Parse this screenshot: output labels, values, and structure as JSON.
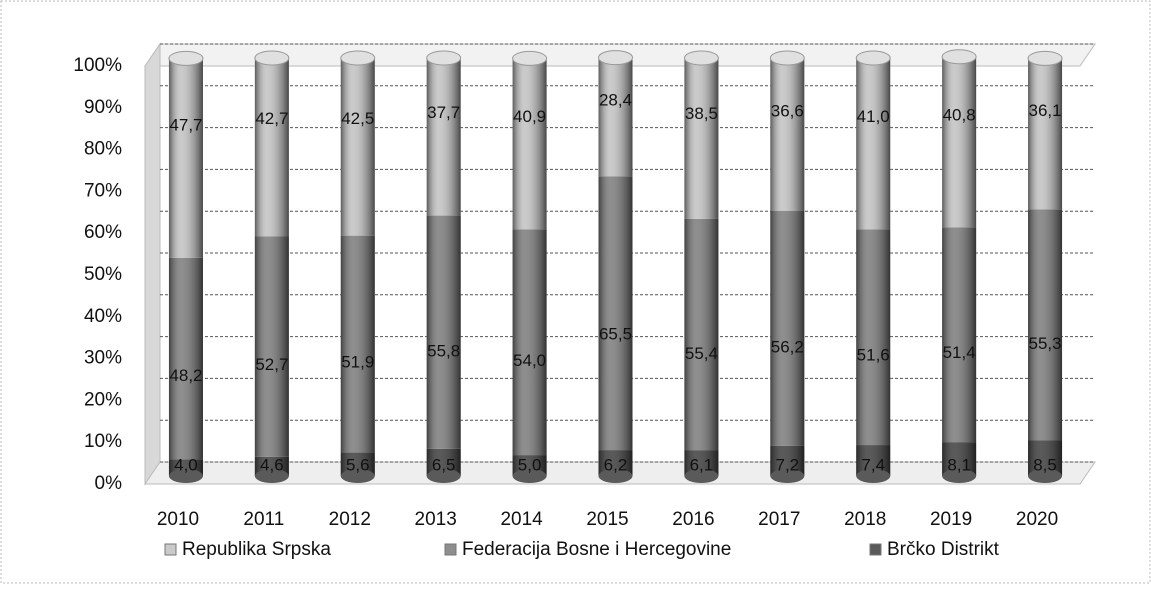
{
  "chart_data": {
    "type": "bar",
    "stacked": true,
    "categories": [
      "2010",
      "2011",
      "2012",
      "2013",
      "2014",
      "2015",
      "2016",
      "2017",
      "2018",
      "2019",
      "2020"
    ],
    "series": [
      {
        "name": "Brčko Distrikt",
        "color": "#5a5a5a",
        "values": [
          4.0,
          4.6,
          5.6,
          6.5,
          5.0,
          6.2,
          6.1,
          7.2,
          7.4,
          8.1,
          8.5
        ],
        "value_labels": [
          "4,0",
          "4,6",
          "5,6",
          "6,5",
          "5,0",
          "6,2",
          "6,1",
          "7,2",
          "7,4",
          "8,1",
          "8,5"
        ]
      },
      {
        "name": "Federacija Bosne i Hercegovine",
        "color": "#8e8e8e",
        "values": [
          48.2,
          52.7,
          51.9,
          55.8,
          54.0,
          65.5,
          55.4,
          56.2,
          51.6,
          51.4,
          55.3
        ],
        "value_labels": [
          "48,2",
          "52,7",
          "51,9",
          "55,8",
          "54,0",
          "65,5",
          "55,4",
          "56,2",
          "51,6",
          "51,4",
          "55,3"
        ]
      },
      {
        "name": "Republika Srpska",
        "color": "#cacaca",
        "values": [
          47.7,
          42.7,
          42.5,
          37.7,
          40.9,
          28.4,
          38.5,
          36.6,
          41.0,
          40.8,
          36.1
        ],
        "value_labels": [
          "47,7",
          "42,7",
          "42,5",
          "37,7",
          "40,9",
          "28,4",
          "38,5",
          "36,6",
          "41,0",
          "40,8",
          "36,1"
        ]
      }
    ],
    "ylim": [
      0,
      100
    ],
    "yticks": [
      {
        "value": 0,
        "label": "0%"
      },
      {
        "value": 10,
        "label": "10%"
      },
      {
        "value": 20,
        "label": "20%"
      },
      {
        "value": 30,
        "label": "30%"
      },
      {
        "value": 40,
        "label": "40%"
      },
      {
        "value": 50,
        "label": "50%"
      },
      {
        "value": 60,
        "label": "60%"
      },
      {
        "value": 70,
        "label": "70%"
      },
      {
        "value": 80,
        "label": "80%"
      },
      {
        "value": 90,
        "label": "90%"
      },
      {
        "value": 100,
        "label": "100%"
      }
    ],
    "grid": true
  }
}
